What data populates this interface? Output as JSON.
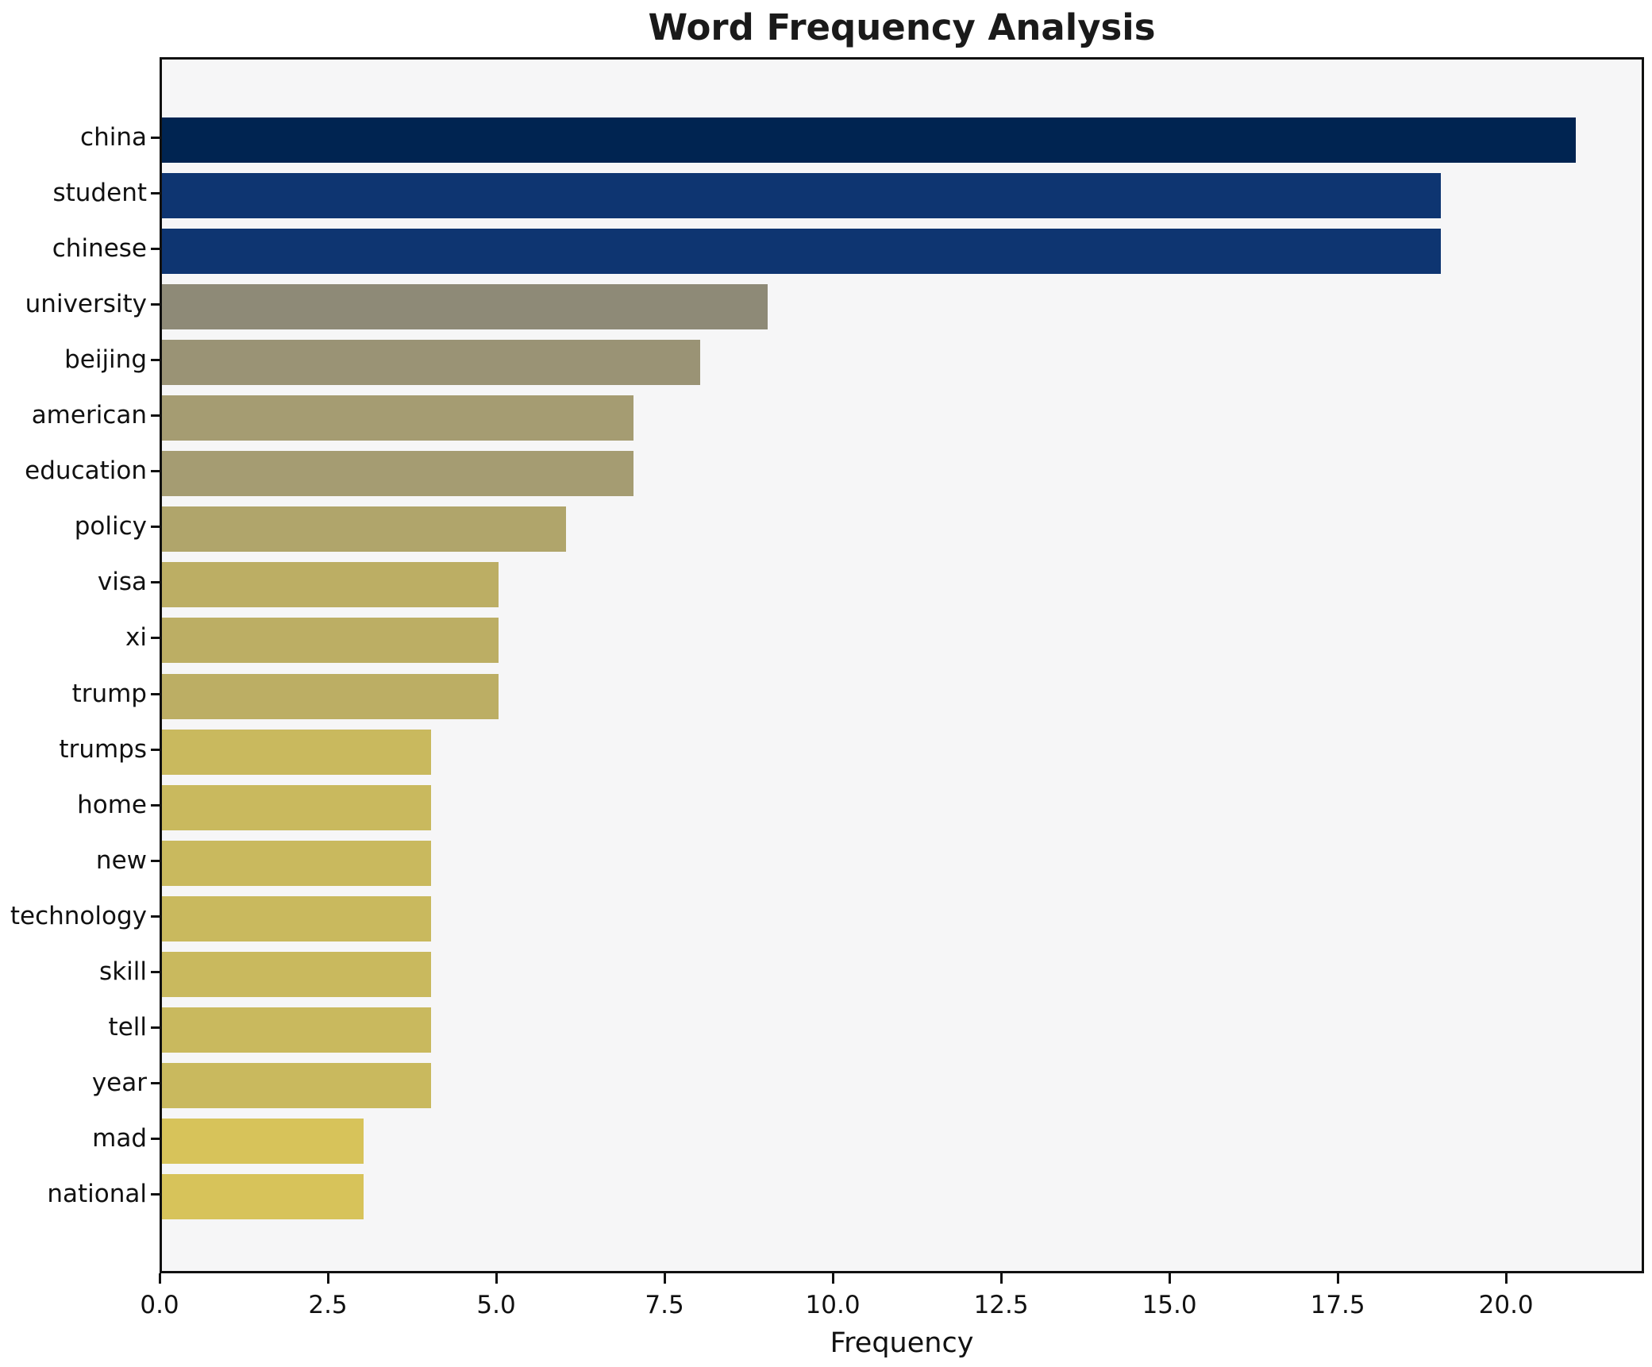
{
  "title": "Word Frequency Analysis",
  "xlabel": "Frequency",
  "chart_data": {
    "type": "bar",
    "orientation": "horizontal",
    "title": "Word Frequency Analysis",
    "xlabel": "Frequency",
    "ylabel": "",
    "categories": [
      "china",
      "student",
      "chinese",
      "university",
      "beijing",
      "american",
      "education",
      "policy",
      "visa",
      "xi",
      "trump",
      "trumps",
      "home",
      "new",
      "technology",
      "skill",
      "tell",
      "year",
      "mad",
      "national"
    ],
    "values": [
      21,
      19,
      19,
      9,
      8,
      7,
      7,
      6,
      5,
      5,
      5,
      4,
      4,
      4,
      4,
      4,
      4,
      4,
      3,
      3
    ],
    "bar_colors": [
      "#002451",
      "#0e3571",
      "#0e3571",
      "#8e8a77",
      "#9a9375",
      "#a59c72",
      "#a59c72",
      "#b0a56b",
      "#bcae64",
      "#bcae64",
      "#bcae64",
      "#c9b95e",
      "#c9b95e",
      "#c9b95e",
      "#c9b95e",
      "#c9b95e",
      "#c9b95e",
      "#c9b95e",
      "#d7c35a",
      "#d7c35a"
    ],
    "colormap_note": "cividis colormap scaled by frequency (high=dark navy, low=gold)",
    "xlim": [
      0,
      22.05
    ],
    "x_ticks": [
      0,
      2.5,
      5,
      7.5,
      10,
      12.5,
      15,
      17.5,
      20
    ],
    "x_tick_labels": [
      "0.0",
      "2.5",
      "5.0",
      "7.5",
      "10.0",
      "12.5",
      "15.0",
      "17.5",
      "20.0"
    ],
    "grid": false,
    "legend": "none",
    "plot_background": "#f6f6f7",
    "figure_background": "#ffffff",
    "spine_color": "#111111"
  }
}
